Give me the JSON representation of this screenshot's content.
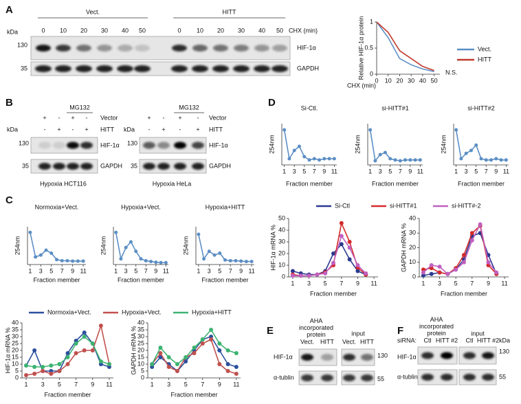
{
  "panel_labels": [
    "A",
    "B",
    "C",
    "D",
    "E",
    "F"
  ],
  "blot_a": {
    "groups": [
      {
        "name": "Vect.",
        "lanes": [
          "0",
          "10",
          "20",
          "30",
          "40",
          "50"
        ]
      },
      {
        "name": "HITT",
        "lanes": [
          "0",
          "10",
          "20",
          "30",
          "40",
          "50"
        ]
      }
    ],
    "axis_label": "CHX (min)",
    "kda": "kDa",
    "markers": [
      "130",
      "35"
    ],
    "proteins": [
      "HIF-1α",
      "GAPDH"
    ]
  },
  "blot_b": [
    {
      "treatment": "MG132",
      "rows": [
        {
          "name": "Vector",
          "signs": [
            "+",
            "-",
            "+",
            "-"
          ]
        },
        {
          "name": "HITT",
          "signs": [
            "-",
            "+",
            "-",
            "+"
          ]
        }
      ],
      "kda": "kDa",
      "markers": [
        "130",
        "35"
      ],
      "proteins": [
        "HIF-1α",
        "GAPDH"
      ],
      "caption": "Hypoxia HCT116"
    },
    {
      "treatment": "MG132",
      "rows": [
        {
          "name": "Vector",
          "signs": [
            "+",
            "-",
            "+",
            "-"
          ]
        },
        {
          "name": "HITT",
          "signs": [
            "-",
            "+",
            "-",
            "+"
          ]
        }
      ],
      "kda": "kDa",
      "markers": [
        "130",
        "35"
      ],
      "proteins": [
        "HIF-1α",
        "GAPDH"
      ],
      "caption": "Hypoxia HeLa"
    }
  ],
  "blot_e": {
    "headers": [
      "AHA incorporated protein",
      "input"
    ],
    "lanes": [
      [
        "Vect.",
        "HITT"
      ],
      [
        "Vect.",
        "HITT"
      ]
    ],
    "proteins": [
      "HIF-1α",
      "α-tublin"
    ],
    "markers": [
      "130",
      "55"
    ]
  },
  "blot_f": {
    "headers": [
      "AHA incorporated protein",
      "input"
    ],
    "row_label": "siRNA:",
    "lanes": [
      [
        "Ctl",
        "HITT #2"
      ],
      [
        "Ctl",
        "HITT #2"
      ]
    ],
    "kda": "kDa",
    "proteins": [
      "HIF-1α",
      "α-tublin"
    ],
    "markers": [
      "130",
      "55"
    ]
  },
  "chart_data": [
    {
      "type": "line",
      "ylabel": "Relative HIF-1α protein",
      "xlabel": "CHX (min)",
      "x": [
        0,
        10,
        20,
        30,
        40,
        50
      ],
      "xlim": [
        0,
        55
      ],
      "xticks": [
        0,
        10,
        20,
        30,
        40,
        50
      ],
      "ylim": [
        0,
        1
      ],
      "yticks": [
        0,
        0.5,
        1
      ],
      "annotation": "N.S.",
      "series": [
        {
          "name": "Vect.",
          "color": "#5b8ec4",
          "values": [
            1,
            0.7,
            0.3,
            0.18,
            0.1,
            0.05
          ]
        },
        {
          "name": "HITT",
          "color": "#c0392b",
          "values": [
            1,
            0.8,
            0.45,
            0.3,
            0.15,
            0.07
          ]
        }
      ]
    },
    {
      "type": "line",
      "title": "Normoxia+Vect.",
      "ylabel": "254nm",
      "xlabel": "Fraction member",
      "x": [
        1,
        2,
        3,
        4,
        5,
        6,
        7,
        8,
        9,
        10,
        11
      ],
      "xlim": [
        0.5,
        11.5
      ],
      "xticks": [
        1,
        3,
        5,
        7,
        9,
        11
      ],
      "ylim": [
        0,
        1
      ],
      "series": [
        {
          "color": "#5b8ec4",
          "values": [
            0.85,
            0.2,
            0.25,
            0.38,
            0.3,
            0.13,
            0.1,
            0.1,
            0.09,
            0.09,
            0.09
          ]
        }
      ]
    },
    {
      "type": "line",
      "title": "Hypoxia+Vect.",
      "ylabel": "254nm",
      "xlabel": "Fraction member",
      "x": [
        1,
        2,
        3,
        4,
        5,
        6,
        7,
        8,
        9,
        10,
        11
      ],
      "xlim": [
        0.5,
        11.5
      ],
      "xticks": [
        1,
        3,
        5,
        7,
        9,
        11
      ],
      "ylim": [
        0,
        1
      ],
      "series": [
        {
          "color": "#5b8ec4",
          "values": [
            0.85,
            0.15,
            0.45,
            0.6,
            0.35,
            0.15,
            0.1,
            0.08,
            0.06,
            0.05,
            0.05
          ]
        }
      ]
    },
    {
      "type": "line",
      "title": "Hypoxia+HITT",
      "ylabel": "254nm",
      "xlabel": "Fraction member",
      "x": [
        1,
        2,
        3,
        4,
        5,
        6,
        7,
        8,
        9,
        10,
        11
      ],
      "xlim": [
        0.5,
        11.5
      ],
      "xticks": [
        1,
        3,
        5,
        7,
        9,
        11
      ],
      "ylim": [
        0,
        1
      ],
      "series": [
        {
          "color": "#5b8ec4",
          "values": [
            0.8,
            0.15,
            0.35,
            0.25,
            0.3,
            0.12,
            0.1,
            0.1,
            0.09,
            0.08,
            0.08
          ]
        }
      ]
    },
    {
      "type": "line",
      "ylabel": "HIF-1α mRNA %",
      "xlabel": "Fraction member",
      "x": [
        1,
        2,
        3,
        4,
        5,
        6,
        7,
        8,
        9,
        10,
        11
      ],
      "xlim": [
        0.5,
        11.5
      ],
      "xticks": [
        1,
        3,
        5,
        7,
        9,
        11
      ],
      "ylim": [
        0,
        40
      ],
      "yticks": [
        0,
        5,
        10,
        15,
        20,
        25,
        30,
        35,
        40
      ],
      "series": [
        {
          "name": "Normoxia+Vect.",
          "color": "#2c4f9e",
          "values": [
            9,
            20,
            5,
            5,
            5,
            18,
            27,
            33,
            25,
            10,
            8
          ]
        },
        {
          "name": "Hypoxia+Vect.",
          "color": "#c0504d",
          "values": [
            2,
            3,
            5,
            3,
            5,
            10,
            18,
            20,
            20,
            38,
            10
          ]
        },
        {
          "name": "Hypoxia+HITT",
          "color": "#3cb371",
          "values": [
            9,
            8,
            8,
            9,
            10,
            15,
            25,
            30,
            25,
            12,
            10
          ]
        }
      ]
    },
    {
      "type": "line",
      "ylabel": "GAPDH mRNA %",
      "xlabel": "Fraction member",
      "x": [
        1,
        2,
        3,
        4,
        5,
        6,
        7,
        8,
        9,
        10,
        11
      ],
      "xlim": [
        0.5,
        11.5
      ],
      "xticks": [
        1,
        3,
        5,
        7,
        9,
        11
      ],
      "ylim": [
        0,
        40
      ],
      "yticks": [
        0,
        5,
        10,
        15,
        20,
        25,
        30,
        35,
        40
      ],
      "series": [
        {
          "color": "#2c4f9e",
          "values": [
            8,
            15,
            10,
            5,
            12,
            20,
            28,
            30,
            20,
            10,
            8
          ]
        },
        {
          "color": "#c0504d",
          "values": [
            10,
            18,
            8,
            5,
            15,
            18,
            25,
            28,
            10,
            5,
            3
          ]
        },
        {
          "color": "#3cb371",
          "values": [
            10,
            22,
            15,
            10,
            15,
            22,
            28,
            35,
            25,
            20,
            18
          ]
        }
      ]
    },
    {
      "type": "line",
      "title": "Si-Ctl.",
      "ylabel": "254nm",
      "xlabel": "Fraction member",
      "x": [
        1,
        2,
        3,
        4,
        5,
        6,
        7,
        8,
        9,
        10,
        11
      ],
      "xlim": [
        0.5,
        11.5
      ],
      "xticks": [
        1,
        3,
        5,
        7,
        9,
        11
      ],
      "ylim": [
        0,
        1
      ],
      "series": [
        {
          "color": "#5b8ec4",
          "values": [
            0.85,
            0.15,
            0.35,
            0.45,
            0.2,
            0.12,
            0.15,
            0.12,
            0.15,
            0.15,
            0.15
          ]
        }
      ]
    },
    {
      "type": "line",
      "title": "si-HITT#1",
      "ylabel": "254nm",
      "xlabel": "Fraction member",
      "x": [
        1,
        2,
        3,
        4,
        5,
        6,
        7,
        8,
        9,
        10,
        11
      ],
      "xlim": [
        0.5,
        11.5
      ],
      "xticks": [
        1,
        3,
        5,
        7,
        9,
        11
      ],
      "ylim": [
        0,
        1
      ],
      "series": [
        {
          "color": "#5b8ec4",
          "values": [
            0.85,
            0.1,
            0.25,
            0.3,
            0.15,
            0.12,
            0.1,
            0.12,
            0.12,
            0.12,
            0.12
          ]
        }
      ]
    },
    {
      "type": "line",
      "title": "si-HITT#2",
      "ylabel": "254nm",
      "xlabel": "Fraction member",
      "x": [
        1,
        2,
        3,
        4,
        5,
        6,
        7,
        8,
        9,
        10,
        11
      ],
      "xlim": [
        0.5,
        11.5
      ],
      "xticks": [
        1,
        3,
        5,
        7,
        9,
        11
      ],
      "ylim": [
        0,
        1
      ],
      "series": [
        {
          "color": "#5b8ec4",
          "values": [
            0.85,
            0.15,
            0.28,
            0.35,
            0.48,
            0.15,
            0.12,
            0.12,
            0.15,
            0.12,
            0.12
          ]
        }
      ]
    },
    {
      "type": "line",
      "ylabel": "HIF-1α mRNA %",
      "xlabel": "Fraction member",
      "x": [
        1,
        2,
        3,
        4,
        5,
        6,
        7,
        8,
        9,
        10
      ],
      "xlim": [
        0.5,
        11.5
      ],
      "xticks": [
        1,
        3,
        5,
        7,
        9,
        11
      ],
      "ylim": [
        0,
        50
      ],
      "yticks": [
        0,
        10,
        20,
        30,
        40,
        50
      ],
      "series": [
        {
          "name": "Si-Ctl",
          "color": "#2b3990",
          "values": [
            5,
            3,
            2,
            2,
            5,
            20,
            28,
            15,
            5,
            2
          ]
        },
        {
          "name": "si-HITT#1",
          "color": "#d42a2a",
          "values": [
            2,
            1,
            1,
            2,
            4,
            10,
            46,
            30,
            8,
            2
          ]
        },
        {
          "name": "si-HITT#-2",
          "color": "#c060c0",
          "values": [
            1,
            1,
            1,
            2,
            3,
            12,
            35,
            25,
            10,
            3
          ]
        }
      ]
    },
    {
      "type": "line",
      "ylabel": "GAPDH mRNA %",
      "xlabel": "Fraction member",
      "x": [
        1,
        2,
        3,
        4,
        5,
        6,
        7,
        8,
        9,
        10
      ],
      "xlim": [
        0.5,
        11.5
      ],
      "xticks": [
        1,
        3,
        5,
        7,
        9,
        11
      ],
      "ylim": [
        0,
        40
      ],
      "yticks": [
        0,
        10,
        20,
        30,
        40
      ],
      "series": [
        {
          "color": "#2b3990",
          "values": [
            1,
            2,
            3,
            2,
            5,
            12,
            28,
            30,
            15,
            2
          ]
        },
        {
          "color": "#d42a2a",
          "values": [
            5,
            6,
            3,
            2,
            6,
            15,
            30,
            35,
            8,
            2
          ]
        },
        {
          "color": "#c060c0",
          "values": [
            3,
            8,
            7,
            2,
            5,
            10,
            25,
            36,
            10,
            3
          ]
        }
      ]
    }
  ]
}
